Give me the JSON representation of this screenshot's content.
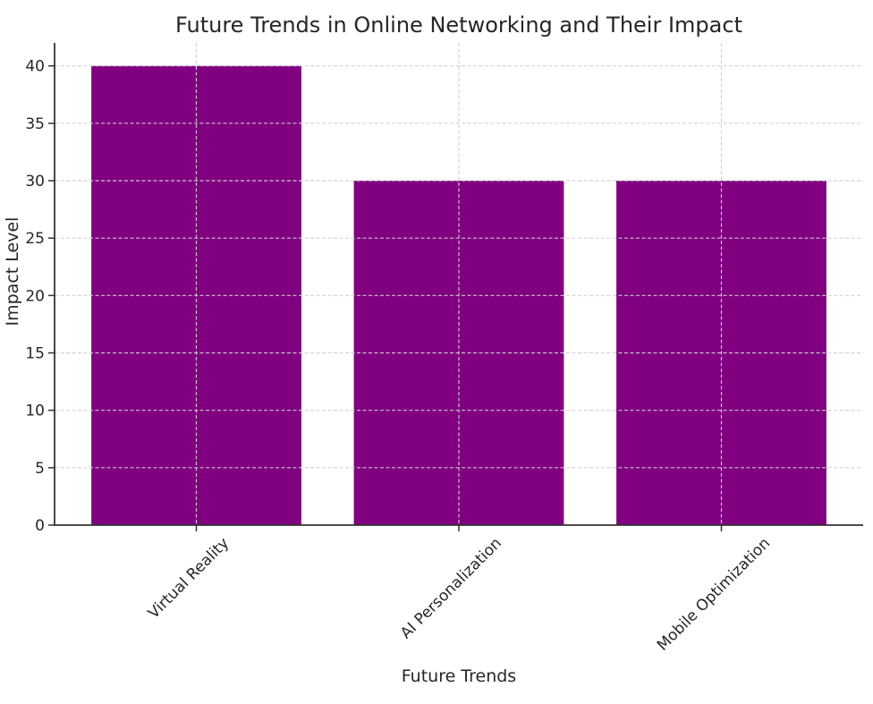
{
  "figure": {
    "background": "#ffffff",
    "text_color": "#262626",
    "spine_color": "#333333"
  },
  "chart_data": {
    "type": "bar",
    "title": "Future Trends in Online Networking and Their Impact",
    "xlabel": "Future Trends",
    "ylabel": "Impact Level",
    "categories": [
      "Virtual Reality",
      "AI Personalization",
      "Mobile Optimization"
    ],
    "values": [
      40,
      30,
      30
    ],
    "ylim": [
      0,
      42
    ],
    "yticks": [
      0,
      5,
      10,
      15,
      20,
      25,
      30,
      35,
      40
    ],
    "bar_color": "#800080",
    "bar_width_fraction": 0.8,
    "grid": {
      "show": true,
      "style": "dashed",
      "color": "#d0d0d0",
      "drawn_over_bars": true,
      "vertical_lines_at_bar_centers": true
    },
    "legend": null,
    "x_tick_label_rotation_deg": 45
  }
}
